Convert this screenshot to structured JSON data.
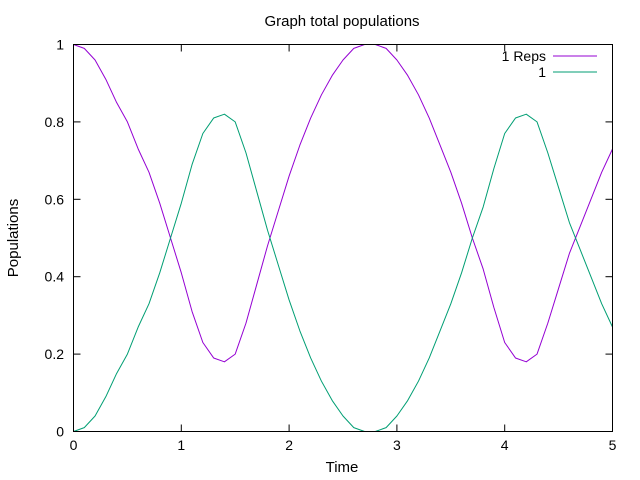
{
  "chart_data": {
    "type": "line",
    "title": "Graph total populations",
    "xlabel": "Time",
    "ylabel": "Populations",
    "xlim": [
      0,
      5
    ],
    "ylim": [
      0,
      1
    ],
    "xticks": [
      0,
      1,
      2,
      3,
      4,
      5
    ],
    "yticks": [
      0,
      0.2,
      0.4,
      0.6,
      0.8,
      1
    ],
    "xtick_labels": [
      "0",
      "1",
      "2",
      "3",
      "4",
      "5"
    ],
    "ytick_labels": [
      "0",
      "0.2",
      "0.4",
      "0.6",
      "0.8",
      "1"
    ],
    "grid": false,
    "legend_position": "top-right",
    "series": [
      {
        "name": "1 Reps",
        "color": "#9400d3",
        "x": [
          0,
          0.1,
          0.2,
          0.3,
          0.4,
          0.5,
          0.6,
          0.7,
          0.8,
          0.9,
          1.0,
          1.1,
          1.2,
          1.3,
          1.4,
          1.5,
          1.6,
          1.7,
          1.8,
          1.9,
          2.0,
          2.1,
          2.2,
          2.3,
          2.4,
          2.5,
          2.6,
          2.7,
          2.8,
          2.9,
          3.0,
          3.1,
          3.2,
          3.3,
          3.4,
          3.5,
          3.6,
          3.7,
          3.8,
          3.9,
          4.0,
          4.1,
          4.2,
          4.3,
          4.4,
          4.5,
          4.6,
          4.7,
          4.8,
          4.9,
          5.0
        ],
        "y": [
          1.0,
          0.99,
          0.96,
          0.91,
          0.85,
          0.8,
          0.73,
          0.67,
          0.59,
          0.5,
          0.41,
          0.31,
          0.23,
          0.19,
          0.18,
          0.2,
          0.28,
          0.38,
          0.48,
          0.57,
          0.66,
          0.74,
          0.81,
          0.87,
          0.92,
          0.96,
          0.99,
          1.0,
          1.0,
          0.99,
          0.96,
          0.92,
          0.87,
          0.81,
          0.74,
          0.67,
          0.59,
          0.5,
          0.42,
          0.32,
          0.23,
          0.19,
          0.18,
          0.2,
          0.28,
          0.37,
          0.46,
          0.53,
          0.6,
          0.67,
          0.73
        ]
      },
      {
        "name": "1",
        "color": "#009e73",
        "x": [
          0,
          0.1,
          0.2,
          0.3,
          0.4,
          0.5,
          0.6,
          0.7,
          0.8,
          0.9,
          1.0,
          1.1,
          1.2,
          1.3,
          1.4,
          1.5,
          1.6,
          1.7,
          1.8,
          1.9,
          2.0,
          2.1,
          2.2,
          2.3,
          2.4,
          2.5,
          2.6,
          2.7,
          2.8,
          2.9,
          3.0,
          3.1,
          3.2,
          3.3,
          3.4,
          3.5,
          3.6,
          3.7,
          3.8,
          3.9,
          4.0,
          4.1,
          4.2,
          4.3,
          4.4,
          4.5,
          4.6,
          4.7,
          4.8,
          4.9,
          5.0
        ],
        "y": [
          0.0,
          0.01,
          0.04,
          0.09,
          0.15,
          0.2,
          0.27,
          0.33,
          0.41,
          0.5,
          0.59,
          0.69,
          0.77,
          0.81,
          0.82,
          0.8,
          0.72,
          0.62,
          0.52,
          0.43,
          0.34,
          0.26,
          0.19,
          0.13,
          0.08,
          0.04,
          0.01,
          0.0,
          0.0,
          0.01,
          0.04,
          0.08,
          0.13,
          0.19,
          0.26,
          0.33,
          0.41,
          0.5,
          0.58,
          0.68,
          0.77,
          0.81,
          0.82,
          0.8,
          0.72,
          0.63,
          0.54,
          0.47,
          0.4,
          0.33,
          0.27
        ]
      }
    ]
  }
}
